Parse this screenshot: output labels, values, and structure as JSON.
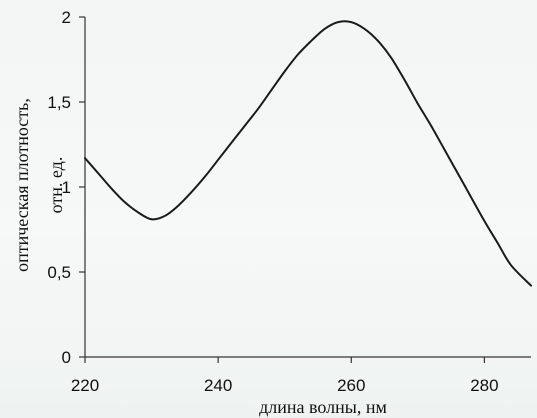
{
  "chart_data": {
    "type": "line",
    "title": "",
    "xlabel": "длина волны, нм",
    "ylabel_line1": "оптическая плотность,",
    "ylabel_line2": "отн. ед.",
    "xlim": [
      220,
      287
    ],
    "ylim": [
      0,
      2
    ],
    "x_ticks": [
      220,
      240,
      260,
      280
    ],
    "x_tick_labels": [
      "220",
      "240",
      "260",
      "280"
    ],
    "y_ticks": [
      0,
      0.5,
      1,
      1.5,
      2
    ],
    "y_tick_labels": [
      "0",
      "0,5",
      "1",
      "1,5",
      "2"
    ],
    "grid": false,
    "line_color": "#1a1a1a",
    "series": [
      {
        "x": [
          220,
          222,
          224,
          226,
          228,
          230,
          232,
          234,
          236,
          238,
          240,
          242,
          244,
          246,
          248,
          250,
          252,
          254,
          256,
          258,
          260,
          262,
          264,
          266,
          268,
          270,
          272,
          274,
          276,
          278,
          280,
          282,
          284,
          287
        ],
        "values": [
          1.17,
          1.08,
          0.99,
          0.91,
          0.85,
          0.81,
          0.83,
          0.89,
          0.97,
          1.06,
          1.16,
          1.26,
          1.36,
          1.46,
          1.57,
          1.68,
          1.78,
          1.86,
          1.93,
          1.97,
          1.97,
          1.93,
          1.86,
          1.76,
          1.63,
          1.49,
          1.36,
          1.22,
          1.08,
          0.94,
          0.8,
          0.67,
          0.54,
          0.42
        ]
      }
    ]
  }
}
